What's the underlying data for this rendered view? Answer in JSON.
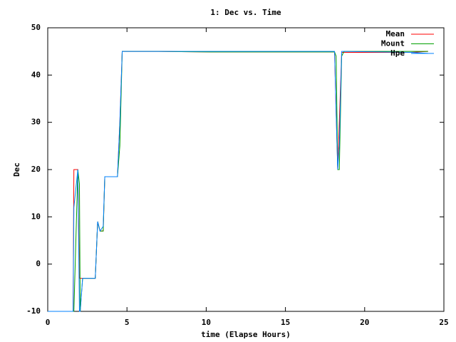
{
  "chart_data": {
    "type": "line",
    "title": "1: Dec vs. Time",
    "xlabel": "time (Elapse Hours)",
    "ylabel": "Dec",
    "x": [
      0,
      1.6,
      1.65,
      1.9,
      2.0,
      2.05,
      2.2,
      3.0,
      3.15,
      3.3,
      3.5,
      3.6,
      4.4,
      4.55,
      4.7,
      7.0,
      10.3,
      18.1,
      18.2,
      18.3,
      18.4,
      18.55,
      18.7,
      22.9,
      24.0
    ],
    "series": [
      {
        "name": "Mean",
        "color": "#ff0000",
        "values": [
          -10,
          -10,
          20,
          20,
          -3,
          -3,
          -3,
          -3,
          9,
          7,
          7,
          18.5,
          18.5,
          30,
          45,
          45,
          44.9,
          44.9,
          32,
          20,
          30,
          44.8,
          44.8,
          44.8,
          45
        ]
      },
      {
        "name": "Mount",
        "color": "#00a000",
        "values": [
          -10,
          -10,
          -10,
          20,
          17,
          -10,
          -3,
          -3,
          9,
          7,
          7,
          18.5,
          18.5,
          25,
          45,
          45,
          44.9,
          44.9,
          44,
          20,
          20,
          44,
          45,
          45,
          45
        ]
      },
      {
        "name": "Hpe",
        "color": "#0080ff",
        "values": [
          -10,
          -10,
          12,
          20,
          -10,
          -10,
          -3,
          -3,
          9,
          7,
          8,
          18.5,
          18.5,
          30,
          45,
          45,
          45,
          45,
          32,
          20,
          25,
          45,
          45,
          44.8,
          44.6
        ]
      }
    ],
    "xlim": [
      0,
      25
    ],
    "xticks": [
      0,
      5,
      10,
      15,
      20,
      25
    ],
    "ylim": [
      -10,
      50
    ],
    "yticks": [
      -10,
      0,
      10,
      20,
      30,
      40,
      50
    ],
    "legend": "upper right"
  }
}
